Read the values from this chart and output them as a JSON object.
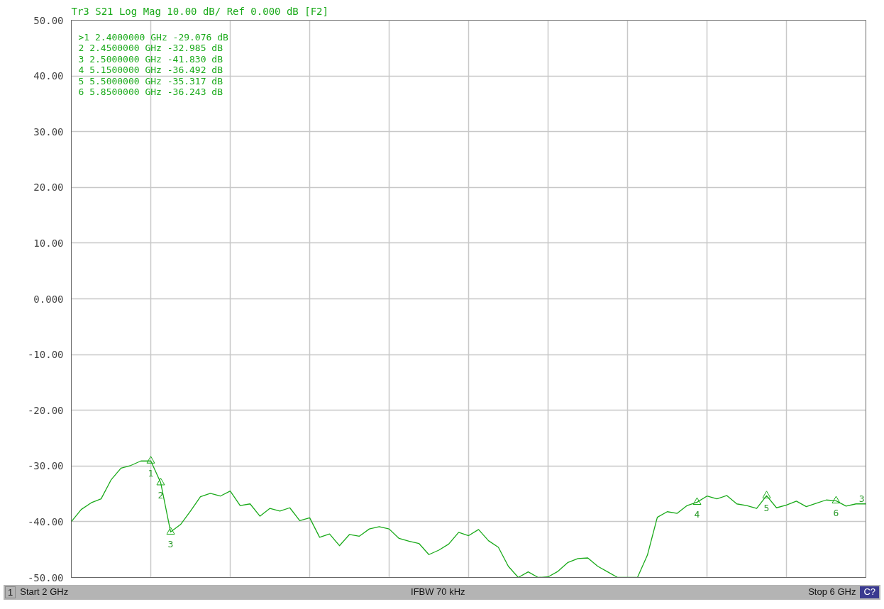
{
  "chart_data": {
    "type": "line",
    "title": "Tr3 S21 Log Mag 10.00 dB/ Ref 0.000 dB [F2]",
    "categories": [
      null,
      null,
      null,
      null,
      null,
      null,
      null,
      null,
      null,
      null,
      null,
      null,
      null,
      null,
      null,
      null,
      null,
      null,
      null,
      null,
      null,
      null,
      null,
      null,
      null,
      null,
      null,
      null,
      null,
      null,
      null,
      null,
      null,
      null,
      null,
      null,
      null,
      null,
      null,
      null,
      null,
      null,
      null,
      null,
      null,
      null,
      null,
      null,
      null,
      null,
      null,
      null,
      null,
      null,
      null,
      null,
      null,
      null,
      null,
      null,
      null,
      null,
      null,
      null,
      null,
      null,
      null,
      null,
      null,
      null,
      null,
      null,
      null,
      null,
      null,
      null,
      null,
      null,
      null,
      null,
      null
    ],
    "ylim": [
      -50,
      50
    ],
    "yticks": [
      {
        "value": 50,
        "label": "50.00"
      },
      {
        "value": 40,
        "label": "40.00"
      },
      {
        "value": 30,
        "label": "30.00"
      },
      {
        "value": 20,
        "label": "20.00"
      },
      {
        "value": 10,
        "label": "10.00"
      },
      {
        "value": 0,
        "label": "0.000"
      },
      {
        "value": -10,
        "label": "-10.00"
      },
      {
        "value": -20,
        "label": "-20.00"
      },
      {
        "value": -30,
        "label": "-30.00"
      },
      {
        "value": -40,
        "label": "-40.00"
      },
      {
        "value": -50,
        "label": "-50.00"
      }
    ],
    "tick_labels": "y",
    "grid": true,
    "series": [
      {
        "color": "#1aaa1a",
        "values": [
          -40.0,
          -37.8,
          -36.6,
          -35.9,
          -32.5,
          -30.4,
          -29.9,
          -29.1,
          -29.076,
          -32.985,
          -41.83,
          -40.5,
          -38.1,
          -35.5,
          -34.9,
          -35.4,
          -34.5,
          -37.1,
          -36.8,
          -39.0,
          -37.6,
          -38.1,
          -37.5,
          -39.8,
          -39.3,
          -42.8,
          -42.2,
          -44.3,
          -42.3,
          -42.6,
          -41.3,
          -40.9,
          -41.3,
          -43.0,
          -43.5,
          -43.9,
          -45.9,
          -45.1,
          -44.0,
          -41.9,
          -42.5,
          -41.4,
          -43.4,
          -44.6,
          -48.0,
          -50,
          -49.0,
          -50,
          -49.9,
          -48.9,
          -47.3,
          -46.6,
          -46.5,
          -48.0,
          -49.0,
          -50,
          -50,
          -50,
          -46.0,
          -39.2,
          -38.2,
          -38.5,
          -37.1,
          -36.492,
          -35.4,
          -35.9,
          -35.3,
          -36.8,
          -37.1,
          -37.6,
          -35.317,
          -37.5,
          -37.0,
          -36.3,
          -37.3,
          -36.7,
          -36.1,
          -36.243,
          -37.2,
          -36.8,
          -36.8
        ]
      }
    ],
    "annotations": [
      ">1  2.4000000 GHz -29.076 dB",
      " 2  2.4500000 GHz -32.985 dB",
      " 3  2.5000000 GHz -41.830 dB",
      " 4  5.1500000 GHz -36.492 dB",
      " 5  5.5000000 GHz -35.317 dB",
      " 6  5.8500000 GHz -36.243 dB",
      {
        "text": "1",
        "y": -29.076
      },
      {
        "text": "2",
        "y": -32.985
      },
      {
        "text": "3",
        "y": -41.83
      },
      {
        "text": "4",
        "y": -36.492
      },
      {
        "text": "5",
        "y": -35.317
      },
      {
        "text": "6",
        "y": -36.243
      },
      "3",
      "1",
      "Start 2 GHz",
      "IFBW 70 kHz",
      "Stop 6 GHz",
      "C?"
    ]
  }
}
